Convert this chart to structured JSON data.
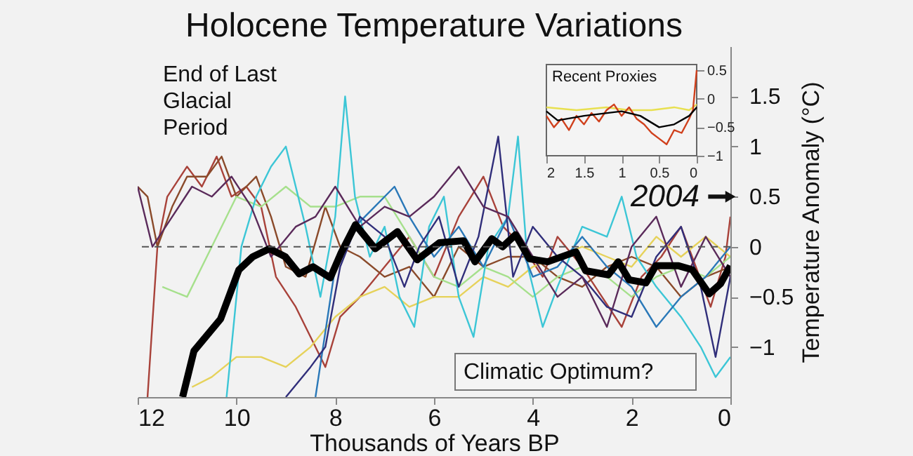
{
  "chart_data": [
    {
      "type": "line",
      "title": "Holocene Temperature Variations",
      "xlabel": "Thousands of Years BP",
      "ylabel": "Temperature Anomaly (°C)",
      "xlim": [
        12,
        0
      ],
      "xticks": [
        12,
        10,
        8,
        6,
        4,
        2,
        0
      ],
      "ylim": [
        -1.5,
        2
      ],
      "yticks": [
        -1,
        -0.5,
        0,
        0.5,
        1,
        1.5
      ],
      "line_style": "solid",
      "marker": "none",
      "ref_lines": [
        {
          "axis": "y",
          "value": 0,
          "line_style": "dashed",
          "color": "#555555"
        }
      ],
      "annotations": [
        "End of Last\nGlacial\nPeriod",
        "Climatic Optimum?",
        {
          "text": "2004",
          "x": 0,
          "y": 0.5
        }
      ],
      "series": [
        {
          "color": "#a8423a",
          "x": [
            11.8,
            11.6,
            11.4,
            11.0,
            10.7,
            10.4,
            10.1,
            9.8,
            9.5,
            9.2,
            8.8,
            8.5,
            8.2,
            7.9,
            7.5,
            7.0,
            6.5,
            6.0,
            5.5,
            5.0,
            4.6,
            4.2,
            3.8,
            3.5,
            3.0,
            2.6,
            2.2,
            1.8,
            1.4,
            1.0,
            0.7,
            0.4,
            0.1,
            0
          ],
          "values": [
            -1.5,
            0.0,
            0.5,
            0.8,
            0.6,
            0.9,
            0.5,
            0.6,
            0.4,
            -0.3,
            -0.6,
            -0.9,
            -1.2,
            -0.7,
            -0.5,
            -0.2,
            0.1,
            -0.3,
            0.3,
            0.7,
            0.2,
            0.0,
            -0.3,
            0.1,
            -0.2,
            -0.5,
            -0.8,
            -0.3,
            -0.1,
            0.2,
            -0.2,
            -0.6,
            -0.1,
            0.3
          ]
        },
        {
          "color": "#8a4a2a",
          "x": [
            12,
            11.8,
            11.6,
            11.3,
            11.0,
            10.6,
            10.3,
            10.0,
            9.6,
            9.3,
            9.0,
            8.6,
            8.2,
            7.9,
            7.5,
            7.0,
            6.5,
            6.0,
            5.5,
            5.0,
            4.5,
            4.0,
            3.5,
            3.0,
            2.5,
            2.0,
            1.5,
            1.0,
            0.5,
            0
          ],
          "values": [
            0.6,
            0.5,
            0.0,
            0.4,
            0.7,
            0.7,
            0.9,
            0.5,
            0.7,
            0.3,
            -0.2,
            -0.3,
            0.4,
            0.0,
            -0.1,
            -0.3,
            -0.2,
            -0.5,
            0.0,
            -0.2,
            -0.1,
            -0.1,
            -0.3,
            -0.4,
            -0.2,
            -0.1,
            -0.2,
            -0.5,
            -0.3,
            -0.2
          ]
        },
        {
          "color": "#e6d25a",
          "x": [
            10.9,
            10.5,
            10,
            9.5,
            9,
            8.5,
            8,
            7.5,
            7,
            6.5,
            6,
            5.5,
            5,
            4.5,
            4,
            3.5,
            3,
            2.5,
            2,
            1.5,
            1,
            0.5,
            0
          ],
          "values": [
            -1.4,
            -1.3,
            -1.1,
            -1.1,
            -1.2,
            -1.0,
            -0.7,
            -0.5,
            -0.4,
            -0.6,
            -0.5,
            -0.5,
            -0.3,
            -0.4,
            -0.2,
            -0.1,
            0.0,
            -0.1,
            -0.2,
            0.1,
            -0.1,
            0.1,
            -0.1
          ]
        },
        {
          "color": "#a6e08c",
          "x": [
            11.5,
            11,
            10.5,
            10,
            9.5,
            9,
            8.5,
            8,
            7.5,
            7,
            6.5,
            6,
            5.5,
            5,
            4.5,
            4,
            3.5,
            3,
            2.5,
            2,
            1.5,
            1,
            0.5,
            0
          ],
          "values": [
            -0.4,
            -0.5,
            0.0,
            0.5,
            0.4,
            0.6,
            0.4,
            0.4,
            0.5,
            0.5,
            0.1,
            -0.3,
            -0.4,
            -0.2,
            -0.3,
            -0.5,
            -0.3,
            -0.2,
            -0.3,
            -0.5,
            -0.3,
            -0.2,
            -0.3,
            -0.1
          ]
        },
        {
          "color": "#3cc6d6",
          "x": [
            10.2,
            9.9,
            9.6,
            9.3,
            9.0,
            8.6,
            8.3,
            8.0,
            7.8,
            7.6,
            7.3,
            7.0,
            6.7,
            6.4,
            6.1,
            5.8,
            5.5,
            5.2,
            4.9,
            4.5,
            4.3,
            4.1,
            3.8,
            3.5,
            3.0,
            2.5,
            2.2,
            1.9,
            1.5,
            1.0,
            0.6,
            0.3,
            0
          ],
          "values": [
            -1.5,
            0.0,
            0.5,
            0.8,
            1.0,
            0.2,
            -0.5,
            0.3,
            1.5,
            0.5,
            -0.1,
            0.2,
            -0.5,
            -0.8,
            0.2,
            0.5,
            -0.5,
            -0.9,
            0.0,
            0.3,
            1.1,
            -0.2,
            -0.8,
            -0.4,
            0.2,
            0.1,
            0.5,
            -0.1,
            -0.4,
            -0.7,
            -1.0,
            -1.3,
            -1.1
          ]
        },
        {
          "color": "#2a78b8",
          "x": [
            8.4,
            8.0,
            7.6,
            7.2,
            6.8,
            6.5,
            6.0,
            5.5,
            5.0,
            4.5,
            4.0,
            3.5,
            3.0,
            2.5,
            2.0,
            1.5,
            1.0,
            0.5,
            0
          ],
          "values": [
            -1.5,
            -0.2,
            0.2,
            0.4,
            0.6,
            0.3,
            -0.1,
            0.2,
            -0.2,
            0.3,
            -0.3,
            -0.2,
            0.1,
            -0.2,
            -0.4,
            -0.8,
            -0.5,
            -0.3,
            0.0
          ]
        },
        {
          "color": "#302e7a",
          "x": [
            9.0,
            8.5,
            8.2,
            7.9,
            7.5,
            7.0,
            6.6,
            6.3,
            5.9,
            5.5,
            5.1,
            4.7,
            4.4,
            4.0,
            3.5,
            3.0,
            2.5,
            2.0,
            1.5,
            1.0,
            0.6,
            0.3,
            0
          ],
          "values": [
            -1.5,
            -1.2,
            -1.0,
            -0.2,
            0.3,
            0.1,
            -0.4,
            0.0,
            0.3,
            -0.4,
            0.1,
            1.1,
            -0.3,
            0.2,
            -0.1,
            -0.3,
            -0.6,
            -0.7,
            -0.1,
            0.2,
            -0.4,
            -1.1,
            -0.3
          ]
        },
        {
          "color": "#5a2a5a",
          "x": [
            12,
            11.7,
            11.3,
            10.9,
            10.5,
            10.1,
            9.7,
            9.3,
            8.8,
            8.4,
            8.0,
            7.5,
            7.0,
            6.5,
            6.0,
            5.5,
            5.0,
            4.5,
            4.0,
            3.5,
            3.0,
            2.5,
            2.0,
            1.5,
            1.0,
            0.5,
            0
          ],
          "values": [
            0.6,
            0.0,
            0.3,
            0.6,
            0.5,
            0.7,
            0.4,
            -0.1,
            0.2,
            0.3,
            0.6,
            0.2,
            0.4,
            0.3,
            0.5,
            0.8,
            0.4,
            0.3,
            -0.1,
            -0.5,
            -0.3,
            -0.8,
            0.0,
            0.3,
            -0.4,
            0.1,
            -0.3
          ]
        },
        {
          "color": "#000000",
          "x": [
            11.09,
            10.86,
            10.32,
            9.95,
            9.67,
            9.33,
            9.01,
            8.73,
            8.45,
            8.1,
            7.88,
            7.59,
            7.19,
            6.74,
            6.34,
            5.89,
            5.4,
            5.17,
            4.83,
            4.61,
            4.35,
            4.07,
            3.7,
            3.13,
            2.93,
            2.47,
            2.27,
            2.05,
            1.71,
            1.51,
            1.05,
            0.77,
            0.43,
            0.2,
            0
          ],
          "values": [
            -1.5,
            -1.04,
            -0.72,
            -0.23,
            -0.1,
            -0.02,
            -0.1,
            -0.27,
            -0.2,
            -0.31,
            -0.06,
            0.22,
            -0.02,
            0.15,
            -0.13,
            0.04,
            0.06,
            -0.15,
            0.08,
            0.0,
            0.12,
            -0.12,
            -0.15,
            -0.05,
            -0.24,
            -0.28,
            -0.15,
            -0.33,
            -0.36,
            -0.19,
            -0.19,
            -0.23,
            -0.47,
            -0.37,
            -0.19
          ]
        }
      ]
    },
    {
      "type": "line",
      "title": "Recent Proxies",
      "xlim": [
        2,
        0
      ],
      "xticks": [
        2,
        1.5,
        1,
        0.5,
        0
      ],
      "ylim": [
        -1,
        0.6
      ],
      "yticks": [
        -1,
        -0.5,
        0,
        0.5
      ],
      "line_style": "solid",
      "marker": "none",
      "series": [
        {
          "color": "#e8e050",
          "x": [
            2,
            1.6,
            1.2,
            0.9,
            0.6,
            0.3,
            0.1,
            0
          ],
          "values": [
            -0.15,
            -0.2,
            -0.15,
            -0.2,
            -0.2,
            -0.15,
            -0.2,
            -0.1
          ]
        },
        {
          "color": "#d0401c",
          "x": [
            2,
            1.9,
            1.8,
            1.7,
            1.6,
            1.5,
            1.4,
            1.3,
            1.2,
            1.1,
            1.0,
            0.9,
            0.8,
            0.7,
            0.6,
            0.5,
            0.4,
            0.3,
            0.2,
            0.1,
            0.05,
            0
          ],
          "values": [
            -0.3,
            -0.5,
            -0.35,
            -0.55,
            -0.3,
            -0.45,
            -0.25,
            -0.4,
            -0.2,
            -0.1,
            -0.3,
            -0.15,
            -0.35,
            -0.45,
            -0.6,
            -0.7,
            -0.8,
            -0.55,
            -0.6,
            -0.35,
            -0.2,
            0.5
          ]
        },
        {
          "color": "#000000",
          "x": [
            2,
            1.85,
            1.5,
            1.0,
            0.75,
            0.5,
            0.3,
            0.1,
            0
          ],
          "values": [
            -0.22,
            -0.38,
            -0.3,
            -0.22,
            -0.3,
            -0.5,
            -0.45,
            -0.3,
            -0.15
          ]
        }
      ]
    }
  ]
}
